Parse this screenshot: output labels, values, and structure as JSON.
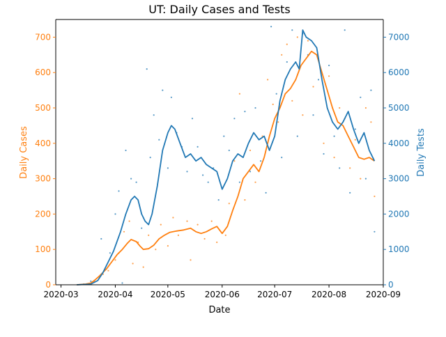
{
  "chart_data": {
    "type": "line",
    "title": "UT: Daily Cases and Tests",
    "xlabel": "Date",
    "ylabel_left": "Daily Cases",
    "ylabel_right": "Daily Tests",
    "colors": {
      "cases": "#ff7f0e",
      "tests": "#1f77b4",
      "text": "#000000"
    },
    "x_ticks": [
      "2020-03",
      "2020-04",
      "2020-05",
      "2020-06",
      "2020-07",
      "2020-08",
      "2020-09"
    ],
    "xlim": [
      "2020-02-27",
      "2020-09-01"
    ],
    "ylim_left": [
      0,
      750
    ],
    "yticks_left": [
      0,
      100,
      200,
      300,
      400,
      500,
      600,
      700
    ],
    "ylim_right": [
      0,
      7500
    ],
    "yticks_right": [
      0,
      1000,
      2000,
      3000,
      4000,
      5000,
      6000,
      7000
    ],
    "grid": false,
    "legend": "none",
    "series": [
      {
        "axis": "left",
        "style": "line",
        "points": [
          [
            "2020-03-10",
            0
          ],
          [
            "2020-03-15",
            2
          ],
          [
            "2020-03-18",
            5
          ],
          [
            "2020-03-20",
            12
          ],
          [
            "2020-03-23",
            25
          ],
          [
            "2020-03-27",
            45
          ],
          [
            "2020-03-30",
            65
          ],
          [
            "2020-04-02",
            85
          ],
          [
            "2020-04-05",
            100
          ],
          [
            "2020-04-08",
            118
          ],
          [
            "2020-04-10",
            128
          ],
          [
            "2020-04-13",
            122
          ],
          [
            "2020-04-15",
            110
          ],
          [
            "2020-04-17",
            100
          ],
          [
            "2020-04-20",
            102
          ],
          [
            "2020-04-23",
            112
          ],
          [
            "2020-04-26",
            130
          ],
          [
            "2020-04-29",
            140
          ],
          [
            "2020-05-02",
            148
          ],
          [
            "2020-05-06",
            152
          ],
          [
            "2020-05-10",
            155
          ],
          [
            "2020-05-14",
            160
          ],
          [
            "2020-05-17",
            150
          ],
          [
            "2020-05-20",
            145
          ],
          [
            "2020-05-23",
            150
          ],
          [
            "2020-05-26",
            158
          ],
          [
            "2020-05-29",
            165
          ],
          [
            "2020-06-01",
            145
          ],
          [
            "2020-06-04",
            165
          ],
          [
            "2020-06-07",
            210
          ],
          [
            "2020-06-10",
            250
          ],
          [
            "2020-06-13",
            300
          ],
          [
            "2020-06-16",
            320
          ],
          [
            "2020-06-19",
            340
          ],
          [
            "2020-06-22",
            320
          ],
          [
            "2020-06-25",
            360
          ],
          [
            "2020-06-28",
            420
          ],
          [
            "2020-07-01",
            470
          ],
          [
            "2020-07-04",
            500
          ],
          [
            "2020-07-07",
            540
          ],
          [
            "2020-07-10",
            555
          ],
          [
            "2020-07-13",
            580
          ],
          [
            "2020-07-16",
            620
          ],
          [
            "2020-07-19",
            640
          ],
          [
            "2020-07-22",
            660
          ],
          [
            "2020-07-25",
            650
          ],
          [
            "2020-07-28",
            600
          ],
          [
            "2020-07-31",
            550
          ],
          [
            "2020-08-03",
            500
          ],
          [
            "2020-08-06",
            460
          ],
          [
            "2020-08-09",
            450
          ],
          [
            "2020-08-12",
            420
          ],
          [
            "2020-08-15",
            390
          ],
          [
            "2020-08-18",
            360
          ],
          [
            "2020-08-21",
            355
          ],
          [
            "2020-08-24",
            360
          ],
          [
            "2020-08-27",
            350
          ]
        ]
      },
      {
        "axis": "right",
        "style": "line",
        "points": [
          [
            "2020-03-10",
            0
          ],
          [
            "2020-03-18",
            20
          ],
          [
            "2020-03-22",
            120
          ],
          [
            "2020-03-25",
            350
          ],
          [
            "2020-03-28",
            650
          ],
          [
            "2020-03-31",
            950
          ],
          [
            "2020-04-04",
            1500
          ],
          [
            "2020-04-07",
            2000
          ],
          [
            "2020-04-10",
            2400
          ],
          [
            "2020-04-12",
            2500
          ],
          [
            "2020-04-14",
            2400
          ],
          [
            "2020-04-16",
            2000
          ],
          [
            "2020-04-18",
            1800
          ],
          [
            "2020-04-20",
            1700
          ],
          [
            "2020-04-22",
            2000
          ],
          [
            "2020-04-25",
            2800
          ],
          [
            "2020-04-28",
            3800
          ],
          [
            "2020-05-01",
            4300
          ],
          [
            "2020-05-03",
            4500
          ],
          [
            "2020-05-05",
            4400
          ],
          [
            "2020-05-08",
            4000
          ],
          [
            "2020-05-11",
            3600
          ],
          [
            "2020-05-14",
            3700
          ],
          [
            "2020-05-17",
            3500
          ],
          [
            "2020-05-20",
            3600
          ],
          [
            "2020-05-23",
            3400
          ],
          [
            "2020-05-26",
            3300
          ],
          [
            "2020-05-29",
            3200
          ],
          [
            "2020-06-01",
            2700
          ],
          [
            "2020-06-04",
            3000
          ],
          [
            "2020-06-07",
            3500
          ],
          [
            "2020-06-10",
            3700
          ],
          [
            "2020-06-13",
            3600
          ],
          [
            "2020-06-16",
            4000
          ],
          [
            "2020-06-19",
            4300
          ],
          [
            "2020-06-22",
            4100
          ],
          [
            "2020-06-25",
            4200
          ],
          [
            "2020-06-28",
            3800
          ],
          [
            "2020-07-01",
            4200
          ],
          [
            "2020-07-04",
            5200
          ],
          [
            "2020-07-07",
            5800
          ],
          [
            "2020-07-10",
            6100
          ],
          [
            "2020-07-13",
            6300
          ],
          [
            "2020-07-15",
            6100
          ],
          [
            "2020-07-17",
            7200
          ],
          [
            "2020-07-19",
            7000
          ],
          [
            "2020-07-22",
            6900
          ],
          [
            "2020-07-25",
            6700
          ],
          [
            "2020-07-28",
            5800
          ],
          [
            "2020-07-31",
            5000
          ],
          [
            "2020-08-03",
            4600
          ],
          [
            "2020-08-06",
            4400
          ],
          [
            "2020-08-09",
            4600
          ],
          [
            "2020-08-12",
            4900
          ],
          [
            "2020-08-15",
            4400
          ],
          [
            "2020-08-18",
            4000
          ],
          [
            "2020-08-21",
            4300
          ],
          [
            "2020-08-24",
            3800
          ],
          [
            "2020-08-27",
            3500
          ]
        ]
      },
      {
        "axis": "left",
        "style": "scatter",
        "points": [
          [
            "2020-03-14",
            2
          ],
          [
            "2020-03-20",
            10
          ],
          [
            "2020-03-25",
            30
          ],
          [
            "2020-03-28",
            40
          ],
          [
            "2020-04-01",
            70
          ],
          [
            "2020-04-03",
            90
          ],
          [
            "2020-04-06",
            150
          ],
          [
            "2020-04-09",
            180
          ],
          [
            "2020-04-11",
            60
          ],
          [
            "2020-04-14",
            120
          ],
          [
            "2020-04-17",
            50
          ],
          [
            "2020-04-20",
            140
          ],
          [
            "2020-04-24",
            100
          ],
          [
            "2020-04-27",
            170
          ],
          [
            "2020-05-01",
            110
          ],
          [
            "2020-05-04",
            190
          ],
          [
            "2020-05-07",
            140
          ],
          [
            "2020-05-12",
            180
          ],
          [
            "2020-05-14",
            70
          ],
          [
            "2020-05-18",
            170
          ],
          [
            "2020-05-22",
            130
          ],
          [
            "2020-05-26",
            180
          ],
          [
            "2020-05-29",
            120
          ],
          [
            "2020-06-03",
            140
          ],
          [
            "2020-06-05",
            230
          ],
          [
            "2020-06-08",
            350
          ],
          [
            "2020-06-11",
            540
          ],
          [
            "2020-06-14",
            240
          ],
          [
            "2020-06-17",
            380
          ],
          [
            "2020-06-20",
            290
          ],
          [
            "2020-06-24",
            420
          ],
          [
            "2020-06-27",
            580
          ],
          [
            "2020-06-30",
            510
          ],
          [
            "2020-07-03",
            460
          ],
          [
            "2020-07-05",
            650
          ],
          [
            "2020-07-08",
            680
          ],
          [
            "2020-07-11",
            520
          ],
          [
            "2020-07-14",
            700
          ],
          [
            "2020-07-17",
            480
          ],
          [
            "2020-07-20",
            690
          ],
          [
            "2020-07-23",
            560
          ],
          [
            "2020-07-26",
            640
          ],
          [
            "2020-07-29",
            400
          ],
          [
            "2020-08-01",
            590
          ],
          [
            "2020-08-04",
            360
          ],
          [
            "2020-08-07",
            500
          ],
          [
            "2020-08-10",
            470
          ],
          [
            "2020-08-13",
            330
          ],
          [
            "2020-08-16",
            410
          ],
          [
            "2020-08-19",
            300
          ],
          [
            "2020-08-22",
            500
          ],
          [
            "2020-08-25",
            460
          ],
          [
            "2020-08-27",
            250
          ]
        ]
      },
      {
        "axis": "right",
        "style": "scatter",
        "points": [
          [
            "2020-03-18",
            100
          ],
          [
            "2020-03-24",
            1300
          ],
          [
            "2020-03-29",
            900
          ],
          [
            "2020-04-01",
            2000
          ],
          [
            "2020-04-03",
            2650
          ],
          [
            "2020-04-05",
            50
          ],
          [
            "2020-04-07",
            3800
          ],
          [
            "2020-04-10",
            3000
          ],
          [
            "2020-04-13",
            2900
          ],
          [
            "2020-04-16",
            1600
          ],
          [
            "2020-04-19",
            6100
          ],
          [
            "2020-04-21",
            3600
          ],
          [
            "2020-04-23",
            4800
          ],
          [
            "2020-04-26",
            4100
          ],
          [
            "2020-04-28",
            5500
          ],
          [
            "2020-05-01",
            3300
          ],
          [
            "2020-05-03",
            5300
          ],
          [
            "2020-05-06",
            4300
          ],
          [
            "2020-05-09",
            3900
          ],
          [
            "2020-05-12",
            3200
          ],
          [
            "2020-05-15",
            4700
          ],
          [
            "2020-05-18",
            3900
          ],
          [
            "2020-05-21",
            3100
          ],
          [
            "2020-05-24",
            2900
          ],
          [
            "2020-05-27",
            3300
          ],
          [
            "2020-05-30",
            2400
          ],
          [
            "2020-06-02",
            4200
          ],
          [
            "2020-06-05",
            3800
          ],
          [
            "2020-06-08",
            4700
          ],
          [
            "2020-06-11",
            2900
          ],
          [
            "2020-06-14",
            4900
          ],
          [
            "2020-06-17",
            3200
          ],
          [
            "2020-06-20",
            5000
          ],
          [
            "2020-06-23",
            3500
          ],
          [
            "2020-06-26",
            2600
          ],
          [
            "2020-06-29",
            7300
          ],
          [
            "2020-07-02",
            5400
          ],
          [
            "2020-07-05",
            3600
          ],
          [
            "2020-07-08",
            6300
          ],
          [
            "2020-07-11",
            7200
          ],
          [
            "2020-07-14",
            4200
          ],
          [
            "2020-07-17",
            7100
          ],
          [
            "2020-07-20",
            6500
          ],
          [
            "2020-07-23",
            4800
          ],
          [
            "2020-07-26",
            5800
          ],
          [
            "2020-07-29",
            3700
          ],
          [
            "2020-08-01",
            6200
          ],
          [
            "2020-08-04",
            4200
          ],
          [
            "2020-08-07",
            3300
          ],
          [
            "2020-08-10",
            7200
          ],
          [
            "2020-08-13",
            2600
          ],
          [
            "2020-08-16",
            4400
          ],
          [
            "2020-08-19",
            5300
          ],
          [
            "2020-08-22",
            3000
          ],
          [
            "2020-08-25",
            5500
          ],
          [
            "2020-08-27",
            1500
          ]
        ]
      }
    ]
  }
}
